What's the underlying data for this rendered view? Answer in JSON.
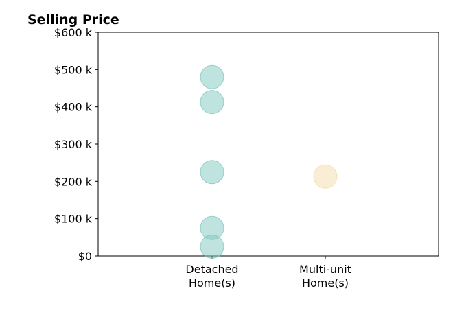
{
  "chart_data": {
    "type": "scatter",
    "title": "Selling Price",
    "xlabel": "",
    "ylabel": "",
    "ylim": [
      0,
      600000
    ],
    "y_ticks": [
      {
        "value": 0,
        "label": "$0"
      },
      {
        "value": 100000,
        "label": "$100 k"
      },
      {
        "value": 200000,
        "label": "$200 k"
      },
      {
        "value": 300000,
        "label": "$300 k"
      },
      {
        "value": 400000,
        "label": "$400 k"
      },
      {
        "value": 500000,
        "label": "$500 k"
      },
      {
        "value": 600000,
        "label": "$600 k"
      }
    ],
    "categories": [
      {
        "key": "detached",
        "lines": [
          "Detached",
          "Home(s)"
        ]
      },
      {
        "key": "multi",
        "lines": [
          "Multi-unit",
          "Home(s)"
        ]
      }
    ],
    "grid": false,
    "series": [
      {
        "category": "detached",
        "color": "#7fc7bd",
        "values": [
          480000,
          413000,
          225000,
          75000,
          25000
        ]
      },
      {
        "category": "multi",
        "color": "#f3dca8",
        "values": [
          213000
        ]
      }
    ]
  }
}
